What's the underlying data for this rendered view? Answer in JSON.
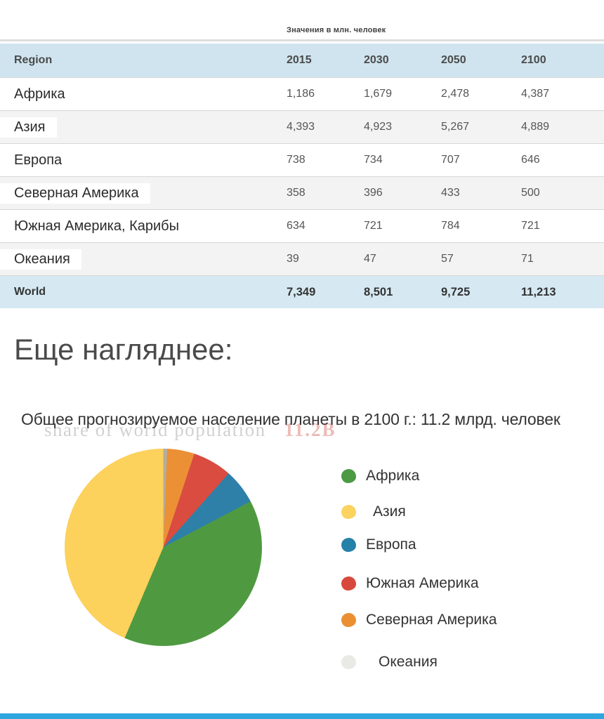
{
  "page": {
    "caption": "Значения в млн. человек",
    "section_heading": "Еще нагляднее:"
  },
  "table": {
    "region_header": "Region",
    "year_headers": [
      "2015",
      "2030",
      "2050",
      "2100"
    ],
    "rows": [
      {
        "region": "Африка",
        "values": [
          "1,186",
          "1,679",
          "2,478",
          "4,387"
        ]
      },
      {
        "region": "Азия",
        "values": [
          "4,393",
          "4,923",
          "5,267",
          "4,889"
        ]
      },
      {
        "region": "Европа",
        "values": [
          "738",
          "734",
          "707",
          "646"
        ]
      },
      {
        "region": "Северная Америка",
        "values": [
          "358",
          "396",
          "433",
          "500"
        ]
      },
      {
        "region": "Южная Америка, Карибы",
        "values": [
          "634",
          "721",
          "784",
          "721"
        ]
      },
      {
        "region": "Океания",
        "values": [
          "39",
          "47",
          "57",
          "71"
        ]
      },
      {
        "region": "World",
        "values": [
          "7,349",
          "8,501",
          "9,725",
          "11,213"
        ]
      }
    ]
  },
  "chart": {
    "title": "Общее прогнозируемое население планеты в 2100 г.: 11.2 млрд. человек",
    "watermark_text": "share of world population",
    "watermark_value": "11.2B"
  },
  "chart_data": {
    "type": "pie",
    "title": "Общее прогнозируемое население планеты в 2100 г.: 11.2 млрд. человек",
    "unit": "млн. человек",
    "year": "2100",
    "total": 11213,
    "slices_clockwise_from_top": true,
    "slices": [
      {
        "label": "Океания",
        "value": 71,
        "percent": 0.6,
        "color": "#b3ad9e"
      },
      {
        "label": "Северная Америка",
        "value": 500,
        "percent": 4.5,
        "color": "#ec9035"
      },
      {
        "label": "Южная Америка",
        "value": 721,
        "percent": 6.4,
        "color": "#d94c3f"
      },
      {
        "label": "Европа",
        "value": 646,
        "percent": 5.8,
        "color": "#2e80a9"
      },
      {
        "label": "Африка",
        "value": 4387,
        "percent": 39.1,
        "color": "#4f9a41"
      },
      {
        "label": "Азия",
        "value": 4889,
        "percent": 43.6,
        "color": "#fcd15c"
      }
    ],
    "legend_position": "right",
    "legend": [
      {
        "label": "Африка",
        "color": "#4c9a44"
      },
      {
        "label": "Азия",
        "color": "#fbd35e"
      },
      {
        "label": "Европа",
        "color": "#2581a8"
      },
      {
        "label": "Южная Америка",
        "color": "#d8493c"
      },
      {
        "label": "Северная Америка",
        "color": "#ea9033"
      },
      {
        "label": "Океания",
        "color": "#e9e9e5"
      }
    ]
  },
  "colors": {
    "table_header_bg": "#cfe4ee",
    "table_total_bg": "#d6e9f2",
    "table_stripe_bg": "#f3f3f3",
    "row_border": "#d8d8d8",
    "bottom_bar": "#2ea6dd"
  }
}
